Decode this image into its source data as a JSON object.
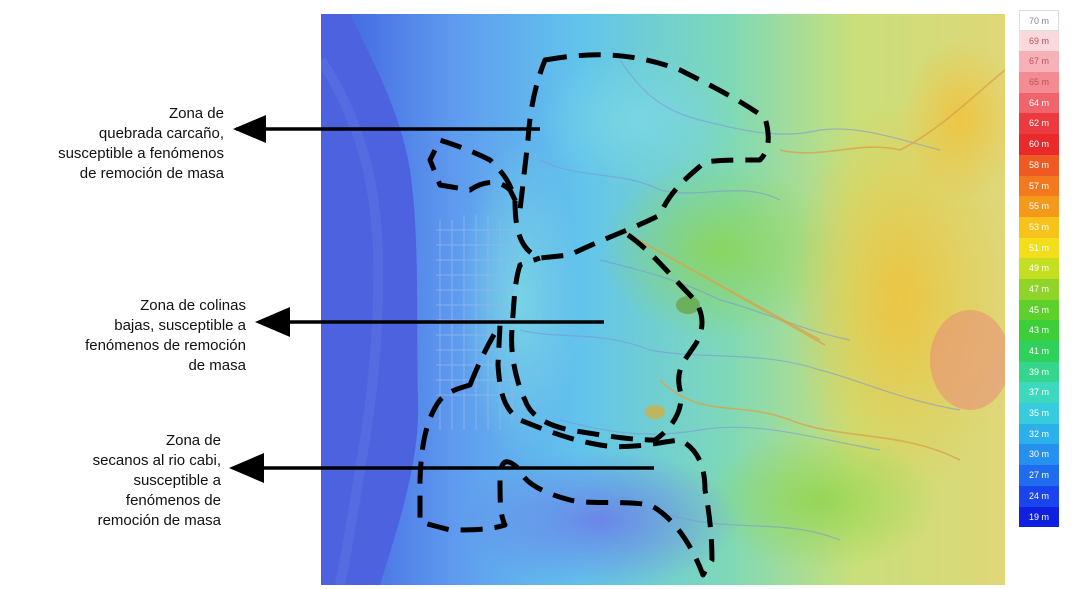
{
  "annotations": [
    {
      "lines": [
        "Zona de",
        "quebrada carcaño,",
        "susceptible a fenómenos",
        "de remoción de masa"
      ]
    },
    {
      "lines": [
        "Zona de colinas",
        "bajas, susceptible a",
        "fenómenos de remoción",
        "de masa"
      ]
    },
    {
      "lines": [
        "Zona de",
        "secanos al rio cabi,",
        "susceptible a",
        "fenómenos de",
        "remoción de masa"
      ]
    }
  ],
  "legend": {
    "entries": [
      {
        "label": "70 m",
        "color": "#ffffff"
      },
      {
        "label": "69 m",
        "color": "#f9d9dc"
      },
      {
        "label": "67 m",
        "color": "#f6b2b8"
      },
      {
        "label": "65 m",
        "color": "#f48b93"
      },
      {
        "label": "64 m",
        "color": "#f0646c"
      },
      {
        "label": "62 m",
        "color": "#ec3b40"
      },
      {
        "label": "60 m",
        "color": "#e92a2a"
      },
      {
        "label": "58 m",
        "color": "#ef5a22"
      },
      {
        "label": "57 m",
        "color": "#f2791e"
      },
      {
        "label": "55 m",
        "color": "#f49a1a"
      },
      {
        "label": "53 m",
        "color": "#f7c21a"
      },
      {
        "label": "51 m",
        "color": "#f2de1a"
      },
      {
        "label": "49 m",
        "color": "#c4df22"
      },
      {
        "label": "47 m",
        "color": "#8fd426"
      },
      {
        "label": "45 m",
        "color": "#5dd02c"
      },
      {
        "label": "43 m",
        "color": "#3ccf3a"
      },
      {
        "label": "41 m",
        "color": "#2ed25a"
      },
      {
        "label": "39 m",
        "color": "#33d68c"
      },
      {
        "label": "37 m",
        "color": "#3dd9be"
      },
      {
        "label": "35 m",
        "color": "#36ccde"
      },
      {
        "label": "32 m",
        "color": "#2bb0ea"
      },
      {
        "label": "30 m",
        "color": "#2590ee"
      },
      {
        "label": "27 m",
        "color": "#1f6cf0"
      },
      {
        "label": "24 m",
        "color": "#1a44ee"
      },
      {
        "label": "19 m",
        "color": "#1020e0"
      }
    ]
  }
}
